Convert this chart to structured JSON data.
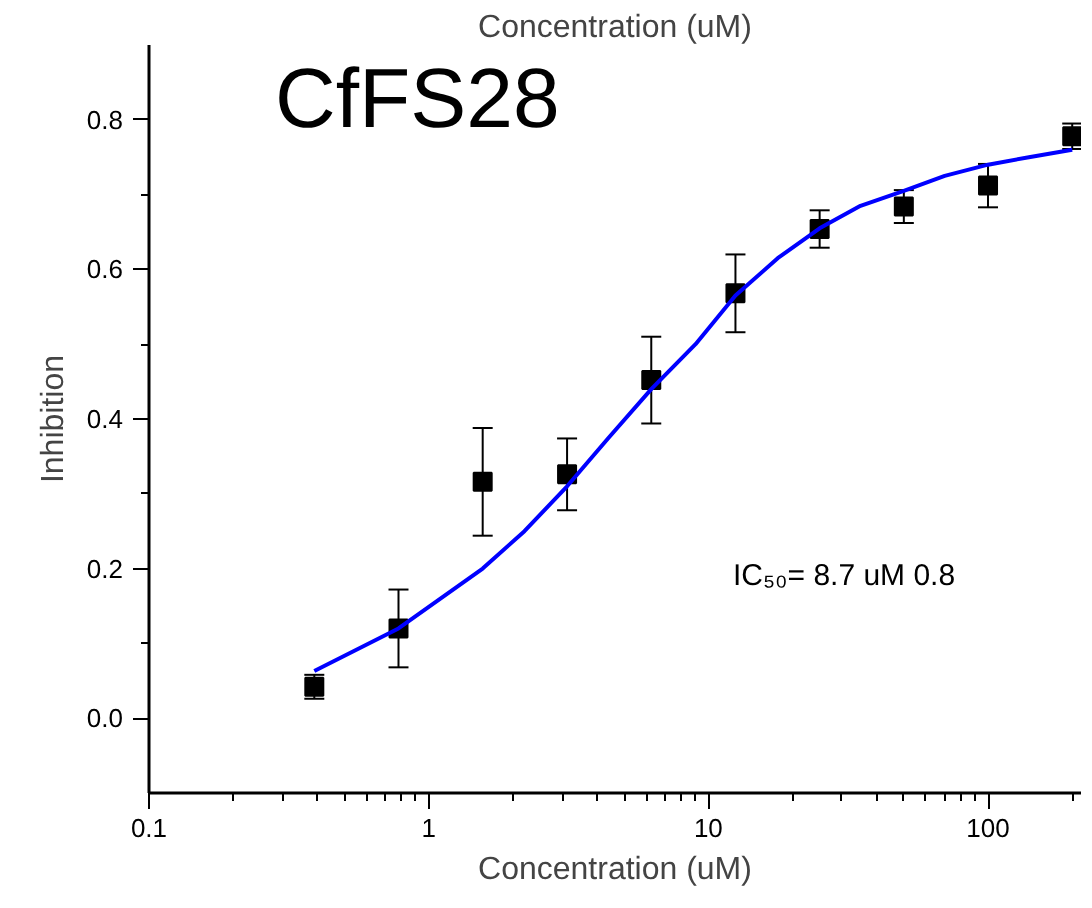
{
  "chart_data": {
    "type": "scatter",
    "xlabel": "Concentration (uM)",
    "x2label": "Concentration (uM)",
    "ylabel": "Inhibition",
    "annotations": [
      "CfFS28",
      "IC₅₀= 8.7 uM     0.8"
    ],
    "log": "x",
    "xlim": [
      0.1,
      215
    ],
    "ylim": [
      -0.1,
      0.9
    ],
    "xticks": [
      0.1,
      {
        "value": 0.2,
        "label": null
      },
      {
        "value": 0.3,
        "label": null
      },
      {
        "value": 0.4,
        "label": null
      },
      {
        "value": 0.5,
        "label": null
      },
      {
        "value": 0.6,
        "label": null
      },
      {
        "value": 0.7,
        "label": null
      },
      {
        "value": 0.8,
        "label": null
      },
      {
        "value": 0.9,
        "label": null
      },
      1,
      {
        "value": 2,
        "label": null
      },
      {
        "value": 3,
        "label": null
      },
      {
        "value": 4,
        "label": null
      },
      {
        "value": 5,
        "label": null
      },
      {
        "value": 6,
        "label": null
      },
      {
        "value": 7,
        "label": null
      },
      {
        "value": 8,
        "label": null
      },
      {
        "value": 9,
        "label": null
      },
      10,
      {
        "value": 20,
        "label": null
      },
      {
        "value": 30,
        "label": null
      },
      {
        "value": 40,
        "label": null
      },
      {
        "value": 50,
        "label": null
      },
      {
        "value": 60,
        "label": null
      },
      {
        "value": 70,
        "label": null
      },
      {
        "value": 80,
        "label": null
      },
      {
        "value": 90,
        "label": null
      },
      100,
      {
        "value": 200,
        "label": null
      }
    ],
    "yticks": [
      {
        "value": 0,
        "label": "0.0"
      },
      {
        "value": 0.1,
        "label": null
      },
      0.2,
      {
        "value": 0.3,
        "label": null
      },
      0.4,
      {
        "value": 0.5,
        "label": null
      },
      0.6,
      {
        "value": 0.7,
        "label": null
      },
      0.8
    ],
    "series": [
      {
        "marker": "square",
        "color": "#000000",
        "x": [
          0.39,
          0.78,
          1.56,
          3.125,
          6.25,
          12.5,
          25,
          50,
          100,
          200
        ],
        "values": [
          0.042,
          0.12,
          0.316,
          0.326,
          0.452,
          0.568,
          0.654,
          0.684,
          0.712,
          0.778
        ],
        "errors": [
          0.016,
          0.052,
          0.072,
          0.048,
          0.058,
          0.052,
          0.025,
          0.022,
          0.029,
          0.017
        ]
      },
      {
        "type": "line",
        "color": "#0000ff",
        "x": [
          0.39,
          0.78,
          1.56,
          2.2,
          3.125,
          4.4,
          6.25,
          9,
          12.5,
          17.7,
          25,
          35,
          50,
          70,
          100,
          140,
          200
        ],
        "values": [
          0.063,
          0.12,
          0.2,
          0.25,
          0.31,
          0.375,
          0.44,
          0.5,
          0.565,
          0.615,
          0.655,
          0.685,
          0.705,
          0.725,
          0.74,
          0.75,
          0.76
        ]
      }
    ]
  }
}
